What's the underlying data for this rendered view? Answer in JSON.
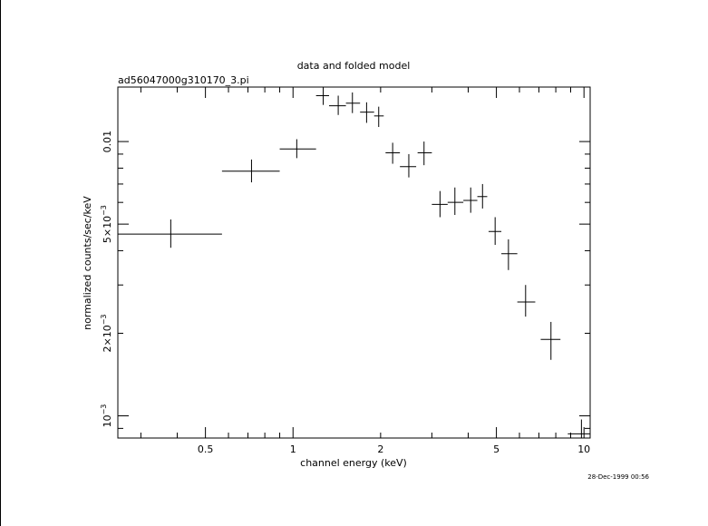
{
  "colors": {
    "background": "#ffffff",
    "ink": "#000000"
  },
  "chart_data": {
    "type": "scatter",
    "title": "data and folded model",
    "subtitle": "ad56047000g310170_3.pi",
    "xlabel": "channel energy (keV)",
    "ylabel": "normalized counts/sec/keV",
    "xscale": "log",
    "yscale": "log",
    "xlim": [
      0.25,
      10.5
    ],
    "ylim": [
      0.00083,
      0.0158
    ],
    "grid": false,
    "timestamp": "28-Dec-1999 00:56",
    "x_ticks": [
      {
        "value": 0.5,
        "label": "0.5"
      },
      {
        "value": 1,
        "label": "1"
      },
      {
        "value": 2,
        "label": "2"
      },
      {
        "value": 5,
        "label": "5"
      },
      {
        "value": 10,
        "label": "10"
      }
    ],
    "y_ticks": [
      {
        "value": 0.001,
        "label": "10",
        "exp": "−3"
      },
      {
        "value": 0.002,
        "label": "2×10",
        "exp": "−3"
      },
      {
        "value": 0.005,
        "label": "5×10",
        "exp": "−3"
      },
      {
        "value": 0.01,
        "label": "0.01",
        "exp": ""
      }
    ],
    "series": [
      {
        "points": [
          {
            "x": 0.38,
            "xlo": 0.25,
            "xhi": 0.57,
            "y": 0.0046,
            "ylo": 0.0041,
            "yhi": 0.0052
          },
          {
            "x": 0.72,
            "xlo": 0.57,
            "xhi": 0.9,
            "y": 0.0078,
            "ylo": 0.0071,
            "yhi": 0.0086
          },
          {
            "x": 1.03,
            "xlo": 0.9,
            "xhi": 1.2,
            "y": 0.0094,
            "ylo": 0.0087,
            "yhi": 0.0102
          },
          {
            "x": 1.27,
            "xlo": 1.2,
            "xhi": 1.33,
            "y": 0.0147,
            "ylo": 0.0136,
            "yhi": 0.0158
          },
          {
            "x": 1.43,
            "xlo": 1.33,
            "xhi": 1.52,
            "y": 0.0135,
            "ylo": 0.0125,
            "yhi": 0.0147
          },
          {
            "x": 1.6,
            "xlo": 1.52,
            "xhi": 1.7,
            "y": 0.0138,
            "ylo": 0.0127,
            "yhi": 0.0151
          },
          {
            "x": 1.79,
            "xlo": 1.7,
            "xhi": 1.9,
            "y": 0.0128,
            "ylo": 0.0117,
            "yhi": 0.0139
          },
          {
            "x": 1.97,
            "xlo": 1.9,
            "xhi": 2.05,
            "y": 0.0124,
            "ylo": 0.0113,
            "yhi": 0.0134
          },
          {
            "x": 2.2,
            "xlo": 2.08,
            "xhi": 2.33,
            "y": 0.0091,
            "ylo": 0.0083,
            "yhi": 0.0099
          },
          {
            "x": 2.5,
            "xlo": 2.33,
            "xhi": 2.65,
            "y": 0.0081,
            "ylo": 0.0074,
            "yhi": 0.009
          },
          {
            "x": 2.82,
            "xlo": 2.68,
            "xhi": 3.0,
            "y": 0.0091,
            "ylo": 0.0082,
            "yhi": 0.01
          },
          {
            "x": 3.2,
            "xlo": 3.0,
            "xhi": 3.4,
            "y": 0.0059,
            "ylo": 0.0053,
            "yhi": 0.0066
          },
          {
            "x": 3.6,
            "xlo": 3.4,
            "xhi": 3.85,
            "y": 0.006,
            "ylo": 0.0054,
            "yhi": 0.0068
          },
          {
            "x": 4.08,
            "xlo": 3.85,
            "xhi": 4.3,
            "y": 0.0061,
            "ylo": 0.0055,
            "yhi": 0.0068
          },
          {
            "x": 4.48,
            "xlo": 4.3,
            "xhi": 4.65,
            "y": 0.0063,
            "ylo": 0.0057,
            "yhi": 0.007
          },
          {
            "x": 4.95,
            "xlo": 4.7,
            "xhi": 5.2,
            "y": 0.0047,
            "ylo": 0.0042,
            "yhi": 0.0053
          },
          {
            "x": 5.5,
            "xlo": 5.2,
            "xhi": 5.9,
            "y": 0.0039,
            "ylo": 0.0034,
            "yhi": 0.0044
          },
          {
            "x": 6.3,
            "xlo": 5.9,
            "xhi": 6.8,
            "y": 0.0026,
            "ylo": 0.0023,
            "yhi": 0.003
          },
          {
            "x": 7.7,
            "xlo": 7.1,
            "xhi": 8.3,
            "y": 0.0019,
            "ylo": 0.0016,
            "yhi": 0.0022
          },
          {
            "x": 9.8,
            "xlo": 8.8,
            "xhi": 10.5,
            "y": 0.00086,
            "ylo": 0.00075,
            "yhi": 0.00097
          }
        ]
      }
    ]
  }
}
